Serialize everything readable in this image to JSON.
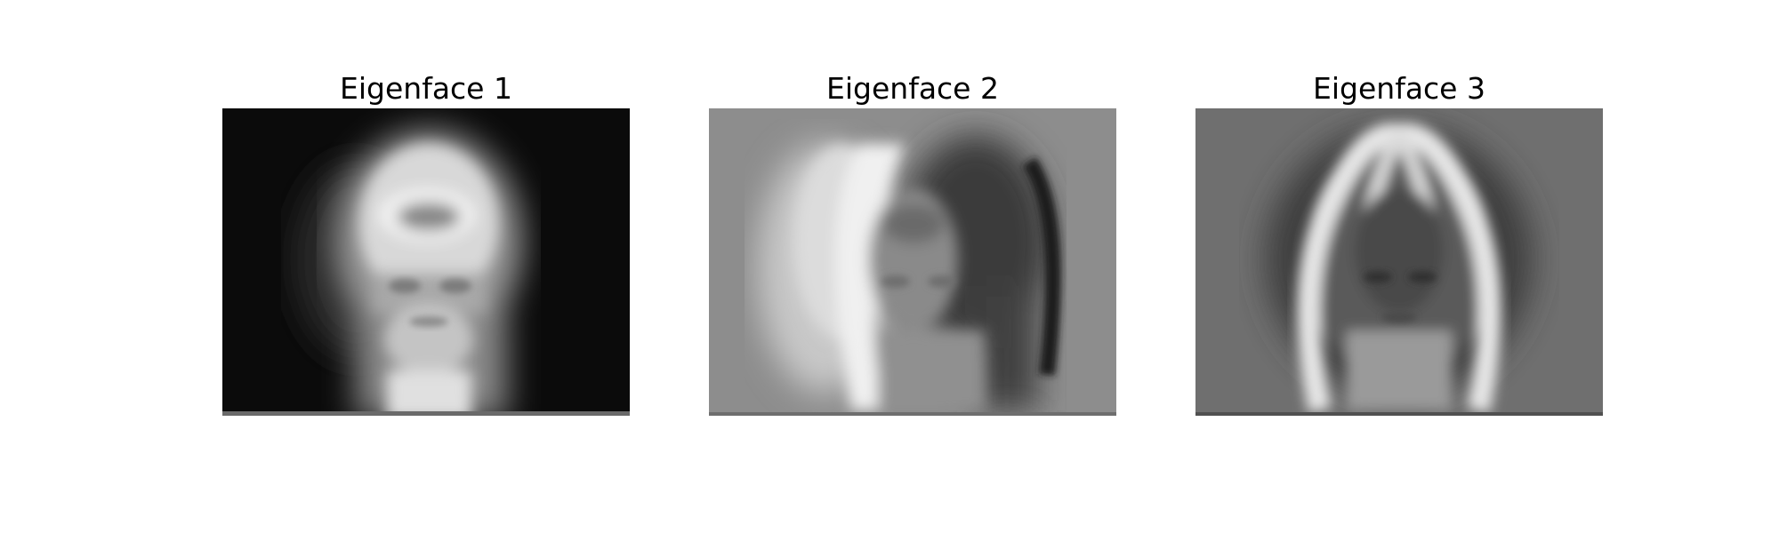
{
  "figure": {
    "panels": [
      {
        "title": "Eigenface 1",
        "image": "eigenface-1-image"
      },
      {
        "title": "Eigenface 2",
        "image": "eigenface-2-image"
      },
      {
        "title": "Eigenface 3",
        "image": "eigenface-3-image"
      }
    ]
  }
}
